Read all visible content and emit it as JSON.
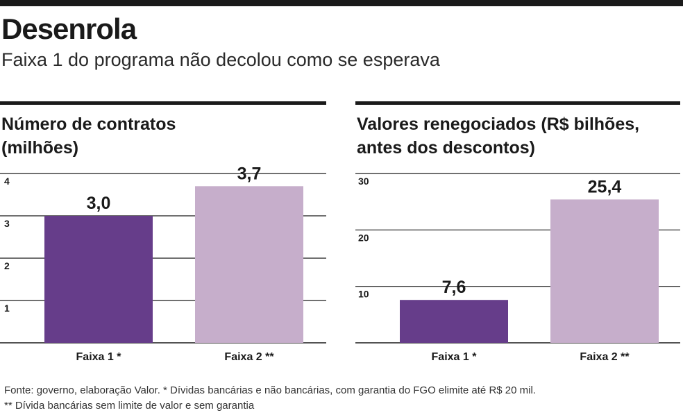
{
  "header": {
    "title": "Desenrola",
    "subtitle": "Faixa 1 do programa não decolou como se esperava"
  },
  "charts": [
    {
      "title_line1": "Número de contratos",
      "title_line2": "(milhões)"
    },
    {
      "title_line1": "Valores renegociados (R$ bilhões,",
      "title_line2": "antes dos descontos)"
    }
  ],
  "footer": {
    "source_line1": "Fonte: governo, elaboração Valor. * Dívidas bancárias e não bancárias, com garantia do FGO elimite até R$ 20 mil.",
    "source_line2": "** Dívida bancárias sem limite de valor e sem garantia"
  },
  "colors": {
    "faixa1": "#663d8a",
    "faixa2": "#c6aecb",
    "axis": "#1a1a1a",
    "text": "#1a1a1a"
  },
  "chart_data": [
    {
      "type": "bar",
      "title": "Número de contratos (milhões)",
      "categories": [
        "Faixa 1 *",
        "Faixa 2 **"
      ],
      "values": [
        3.0,
        3.7
      ],
      "value_labels": [
        "3,0",
        "3,7"
      ],
      "ylim": [
        0,
        4
      ],
      "yticks": [
        1,
        2,
        3,
        4
      ],
      "ytick_labels": [
        "1",
        "2",
        "3",
        "4"
      ],
      "grid": true
    },
    {
      "type": "bar",
      "title": "Valores renegociados (R$ bilhões, antes dos descontos)",
      "categories": [
        "Faixa 1 *",
        "Faixa 2 **"
      ],
      "values": [
        7.6,
        25.4
      ],
      "value_labels": [
        "7,6",
        "25,4"
      ],
      "ylim": [
        0,
        30
      ],
      "yticks": [
        10,
        20,
        30
      ],
      "ytick_labels": [
        "10",
        "20",
        "30"
      ],
      "grid": true
    }
  ]
}
